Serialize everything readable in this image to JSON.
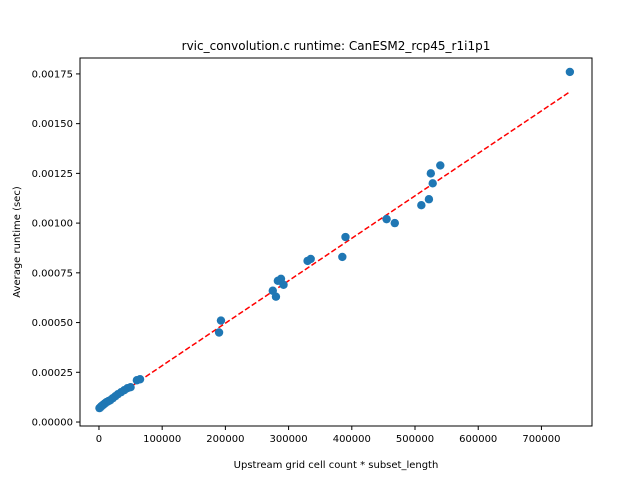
{
  "chart_data": {
    "type": "scatter",
    "title": "rvic_convolution.c runtime: CanESM2_rcp45_r1i1p1",
    "xlabel": "Upstream grid cell count * subset_length",
    "ylabel": "Average runtime (sec)",
    "xlim": [
      -30000,
      780000
    ],
    "ylim": [
      -2e-05,
      0.00183
    ],
    "x_ticks": [
      0,
      100000,
      200000,
      300000,
      400000,
      500000,
      600000,
      700000
    ],
    "x_tick_labels": [
      "0",
      "100000",
      "200000",
      "300000",
      "400000",
      "500000",
      "600000",
      "700000"
    ],
    "y_ticks": [
      0.0,
      0.00025,
      0.0005,
      0.00075,
      0.001,
      0.00125,
      0.0015,
      0.00175
    ],
    "y_tick_labels": [
      "0.00000",
      "0.00025",
      "0.00050",
      "0.00075",
      "0.00100",
      "0.00125",
      "0.00150",
      "0.00175"
    ],
    "grid": false,
    "series": [
      {
        "kind": "points",
        "color": "#1f77b4",
        "x": [
          800,
          2500,
          4000,
          6000,
          8000,
          10000,
          12000,
          15000,
          18000,
          22000,
          26000,
          30000,
          35000,
          40000,
          45000,
          50000,
          60000,
          65000,
          190000,
          193000,
          275000,
          280000,
          283000,
          288000,
          292000,
          330000,
          335000,
          385000,
          390000,
          455000,
          468000,
          510000,
          522000,
          525000,
          528000,
          540000,
          745000
        ],
        "y": [
          7e-05,
          7.5e-05,
          8e-05,
          8.5e-05,
          9e-05,
          9.5e-05,
          0.0001,
          0.000105,
          0.00011,
          0.00012,
          0.00013,
          0.00014,
          0.00015,
          0.00016,
          0.00017,
          0.000175,
          0.00021,
          0.000215,
          0.00045,
          0.00051,
          0.00066,
          0.00063,
          0.00071,
          0.00072,
          0.00069,
          0.00081,
          0.00082,
          0.00083,
          0.00093,
          0.00102,
          0.001,
          0.00109,
          0.00112,
          0.00125,
          0.0012,
          0.00129,
          0.00176
        ]
      },
      {
        "kind": "fit-line",
        "color": "#ff0000",
        "style": "dashed",
        "x": [
          0,
          745000
        ],
        "y": [
          7e-05,
          0.00166
        ]
      }
    ]
  }
}
